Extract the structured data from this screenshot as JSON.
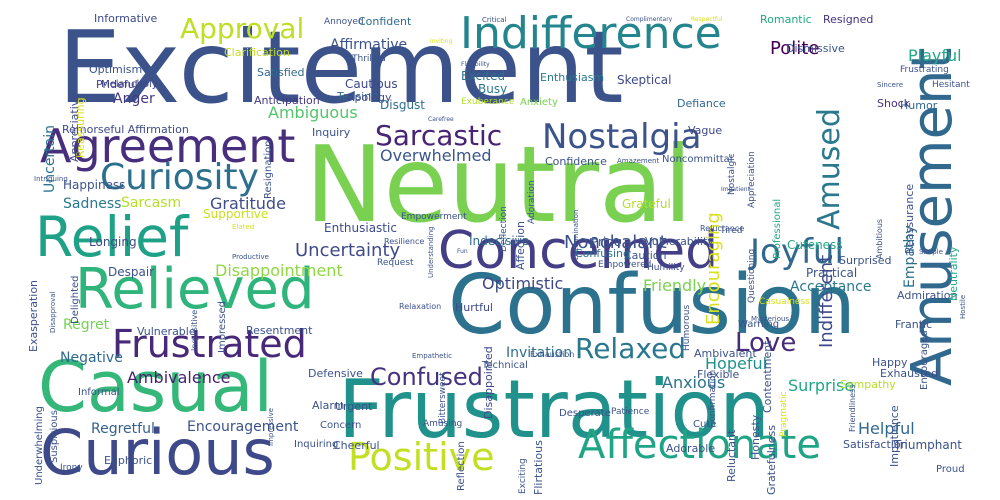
{
  "words": [
    {
      "text": "Excitement",
      "color": "#3b528b"
    },
    {
      "text": "Neutral",
      "color": "#7ad151"
    },
    {
      "text": "Confusion",
      "color": "#2c728e"
    },
    {
      "text": "Frustration",
      "color": "#21918c"
    },
    {
      "text": "Amusement",
      "color": "#31688e"
    },
    {
      "text": "Casual",
      "color": "#35b779"
    },
    {
      "text": "Curious",
      "color": "#3e4989"
    },
    {
      "text": "Relieved",
      "color": "#2fb47c"
    },
    {
      "text": "Relief",
      "color": "#1fa187"
    },
    {
      "text": "Concerned",
      "color": "#433e85"
    },
    {
      "text": "Affectionate",
      "color": "#20a486"
    },
    {
      "text": "Agreement",
      "color": "#472f7d"
    },
    {
      "text": "Indifference",
      "color": "#25858e"
    },
    {
      "text": "Frustrated",
      "color": "#482878"
    },
    {
      "text": "Positive",
      "color": "#c2df23"
    },
    {
      "text": "Curiosity",
      "color": "#2d708e"
    },
    {
      "text": "Nostalgia",
      "color": "#3b528b"
    },
    {
      "text": "Joyful",
      "color": "#31688e"
    },
    {
      "text": "Sarcastic",
      "color": "#482475"
    },
    {
      "text": "Amused",
      "color": "#2a788e"
    },
    {
      "text": "Relaxed",
      "color": "#2a788e"
    },
    {
      "text": "Approval",
      "color": "#bddf26"
    },
    {
      "text": "Confused",
      "color": "#46327e"
    },
    {
      "text": "Love",
      "color": "#472c7a"
    },
    {
      "text": "Indifferent",
      "color": "#3e4989"
    },
    {
      "text": "Encouraging",
      "color": "#d8e219"
    },
    {
      "text": "Uncertainty",
      "color": "#3e4a89"
    },
    {
      "text": "Disappointment",
      "color": "#8fd744"
    },
    {
      "text": "Ambivalence",
      "color": "#481f70"
    },
    {
      "text": "Polite",
      "color": "#440154"
    },
    {
      "text": "Playful",
      "color": "#22a884"
    },
    {
      "text": "Ambiguous",
      "color": "#52c569"
    },
    {
      "text": "Overwhelmed",
      "color": "#39568c"
    },
    {
      "text": "Optimistic",
      "color": "#3f4788"
    },
    {
      "text": "Nonchalant",
      "color": "#3b528b"
    },
    {
      "text": "Gratitude",
      "color": "#3e4c8a"
    },
    {
      "text": "Acceptance",
      "color": "#2a788e"
    },
    {
      "text": "Encouragement",
      "color": "#3b528b"
    },
    {
      "text": "Hopeful",
      "color": "#21918c"
    },
    {
      "text": "Anxious",
      "color": "#2c738e"
    },
    {
      "text": "Helpful",
      "color": "#31688e"
    },
    {
      "text": "Surprise",
      "color": "#21a685"
    },
    {
      "text": "Friendly",
      "color": "#7ad151"
    },
    {
      "text": "Regretful",
      "color": "#355f8d"
    },
    {
      "text": "Invitation",
      "color": "#2d708e"
    },
    {
      "text": "Anger",
      "color": "#453781"
    },
    {
      "text": "Affirmative",
      "color": "#3b528b"
    },
    {
      "text": "Sadness",
      "color": "#2a788e"
    },
    {
      "text": "Sarcasm",
      "color": "#b5de2b"
    },
    {
      "text": "Regret",
      "color": "#75d054"
    },
    {
      "text": "Empathy",
      "color": "#2d708e"
    },
    {
      "text": "Uncertain",
      "color": "#2c738e"
    },
    {
      "text": "Longing",
      "color": "#3e4a89"
    },
    {
      "text": "Happiness",
      "color": "#3b528b"
    },
    {
      "text": "Negative",
      "color": "#31688e"
    },
    {
      "text": "Triumphant",
      "color": "#3b528b"
    },
    {
      "text": "Informative",
      "color": "#3e4a89"
    },
    {
      "text": "Confident",
      "color": "#2e6e8e"
    },
    {
      "text": "Romantic",
      "color": "#22a884"
    },
    {
      "text": "Resigned",
      "color": "#46307e"
    },
    {
      "text": "Optimism",
      "color": "#3b528b"
    },
    {
      "text": "Prideful",
      "color": "#424186"
    },
    {
      "text": "Melancholy",
      "color": "#3f4788"
    },
    {
      "text": "Satisfied",
      "color": "#306a8e"
    },
    {
      "text": "Teasing",
      "color": "#31688e"
    },
    {
      "text": "Cautious",
      "color": "#3e4989"
    },
    {
      "text": "Busy",
      "color": "#2a788e"
    },
    {
      "text": "Excited",
      "color": "#2c728e"
    },
    {
      "text": "Apology",
      "color": "#3e4989"
    },
    {
      "text": "Disgust",
      "color": "#2e6e8e"
    },
    {
      "text": "Anticipation",
      "color": "#453882"
    },
    {
      "text": "Enthusiasm",
      "color": "#2a788e"
    },
    {
      "text": "Skeptical",
      "color": "#3e4989"
    },
    {
      "text": "Defiance",
      "color": "#31688e"
    },
    {
      "text": "Humor",
      "color": "#31688e"
    },
    {
      "text": "Shock",
      "color": "#46327e"
    },
    {
      "text": "Vague",
      "color": "#3e4989"
    },
    {
      "text": "Inquiry",
      "color": "#3b528b"
    },
    {
      "text": "Remorseful Affirmation",
      "color": "#3e4989"
    },
    {
      "text": "Confidence",
      "color": "#3b528b"
    },
    {
      "text": "Noncommittal",
      "color": "#3b528b"
    },
    {
      "text": "Pride",
      "color": "#3b528b"
    },
    {
      "text": "Confusing",
      "color": "#2c728e"
    },
    {
      "text": "Caution",
      "color": "#3b528b"
    },
    {
      "text": "Humility",
      "color": "#3e4989"
    },
    {
      "text": "Empowered",
      "color": "#3b528b"
    },
    {
      "text": "Empowerment",
      "color": "#3b528b"
    },
    {
      "text": "Vulnerability",
      "color": "#3b528b"
    },
    {
      "text": "Cuteness",
      "color": "#22a884"
    },
    {
      "text": "Practical",
      "color": "#3b528b"
    },
    {
      "text": "Admiration",
      "color": "#3b528b"
    },
    {
      "text": "Frantic",
      "color": "#3b528b"
    },
    {
      "text": "Supportive",
      "color": "#c8e020"
    },
    {
      "text": "Enthusiastic",
      "color": "#3e4989"
    },
    {
      "text": "Indecisive",
      "color": "#2e6e8e"
    },
    {
      "text": "Despair",
      "color": "#3b528b"
    },
    {
      "text": "Resentment",
      "color": "#3b528b"
    },
    {
      "text": "Vulnerable",
      "color": "#3b528b"
    },
    {
      "text": "Hurtful",
      "color": "#3e4989"
    },
    {
      "text": "Ambivalent",
      "color": "#3b528b"
    },
    {
      "text": "Flexible",
      "color": "#3b528b"
    },
    {
      "text": "Happy",
      "color": "#3b528b"
    },
    {
      "text": "Exhausted",
      "color": "#3b528b"
    },
    {
      "text": "Sympathy",
      "color": "#b5de2b"
    },
    {
      "text": "Technical",
      "color": "#3b528b"
    },
    {
      "text": "Defensive",
      "color": "#3b528b"
    },
    {
      "text": "Alarm",
      "color": "#3b528b"
    },
    {
      "text": "Urgent",
      "color": "#3b528b"
    },
    {
      "text": "Informal",
      "color": "#3b528b"
    },
    {
      "text": "Concern",
      "color": "#3b528b"
    },
    {
      "text": "Cheerful",
      "color": "#3b528b"
    },
    {
      "text": "Euphoric",
      "color": "#3b528b"
    },
    {
      "text": "Inquiring",
      "color": "#3b528b"
    },
    {
      "text": "Amusing",
      "color": "#3b528b"
    },
    {
      "text": "Cute",
      "color": "#3b528b"
    },
    {
      "text": "Adorable",
      "color": "#3b528b"
    },
    {
      "text": "Satisfaction",
      "color": "#3b528b"
    },
    {
      "text": "Proud",
      "color": "#3b528b"
    },
    {
      "text": "Desperate",
      "color": "#3b528b"
    },
    {
      "text": "Patience",
      "color": "#3b528b"
    },
    {
      "text": "Honesty",
      "color": "#3b528b"
    },
    {
      "text": "Reluctant",
      "color": "#3b528b"
    },
    {
      "text": "Impatience",
      "color": "#3b528b"
    },
    {
      "text": "Exasperation",
      "color": "#3b528b"
    },
    {
      "text": "Reassuring",
      "color": "#d8e219"
    },
    {
      "text": "Appreciative",
      "color": "#3e4989"
    },
    {
      "text": "Clarification",
      "color": "#c2df23"
    },
    {
      "text": "Annoyed",
      "color": "#3b528b"
    },
    {
      "text": "Critical",
      "color": "#3b528b"
    },
    {
      "text": "Complimentary",
      "color": "#3b528b"
    },
    {
      "text": "Respectful",
      "color": "#d8e219"
    },
    {
      "text": "Thrilled",
      "color": "#3b528b"
    },
    {
      "text": "Inviting",
      "color": "#d8e219"
    },
    {
      "text": "Flexibility",
      "color": "#3b528b"
    },
    {
      "text": "Exuberance",
      "color": "#b5de2b"
    },
    {
      "text": "Anxiety",
      "color": "#7ad151"
    },
    {
      "text": "Dismissive",
      "color": "#3b528b"
    },
    {
      "text": "Sincere",
      "color": "#3b528b"
    },
    {
      "text": "Hesitant",
      "color": "#3b528b"
    },
    {
      "text": "Reassurance",
      "color": "#3b528b"
    },
    {
      "text": "Neutrality",
      "color": "#22a884"
    },
    {
      "text": "Disappointed",
      "color": "#3e4989"
    },
    {
      "text": "Resignation",
      "color": "#3b528b"
    },
    {
      "text": "Surprised",
      "color": "#3b528b"
    },
    {
      "text": "Request",
      "color": "#3b528b"
    },
    {
      "text": "Resilience",
      "color": "#3b528b"
    },
    {
      "text": "Relaxation",
      "color": "#3b528b"
    },
    {
      "text": "Warning",
      "color": "#3b528b"
    },
    {
      "text": "Contentment",
      "color": "#3b528b"
    },
    {
      "text": "Impressed",
      "color": "#3b528b"
    },
    {
      "text": "Inquisitive",
      "color": "#3b528b"
    },
    {
      "text": "Delighted",
      "color": "#3b528b"
    },
    {
      "text": "Productive",
      "color": "#3b528b"
    },
    {
      "text": "Elated",
      "color": "#d8e219"
    },
    {
      "text": "Suspicious",
      "color": "#3b528b"
    },
    {
      "text": "Underwhelming",
      "color": "#3b528b"
    },
    {
      "text": "Irony",
      "color": "#3b528b"
    },
    {
      "text": "Carefree",
      "color": "#3b528b"
    },
    {
      "text": "Tired",
      "color": "#3b528b"
    },
    {
      "text": "Impatient",
      "color": "#3b528b"
    },
    {
      "text": "Simple",
      "color": "#3b528b"
    },
    {
      "text": "Casualness",
      "color": "#d8e219"
    },
    {
      "text": "Mysterious",
      "color": "#3b528b"
    },
    {
      "text": "Gratefulness",
      "color": "#3b528b"
    },
    {
      "text": "Pragmatic",
      "color": "#d8e219"
    },
    {
      "text": "Frustrating",
      "color": "#3b528b"
    },
    {
      "text": "Professional",
      "color": "#22a884"
    },
    {
      "text": "Questioning",
      "color": "#3b528b"
    },
    {
      "text": "Appreciation",
      "color": "#3b528b"
    },
    {
      "text": "Nostalgic",
      "color": "#3b528b"
    },
    {
      "text": "Grateful",
      "color": "#b5de2b"
    },
    {
      "text": "Encouraged",
      "color": "#3b528b"
    },
    {
      "text": "Empathetic",
      "color": "#3b528b"
    },
    {
      "text": "Bittersweet",
      "color": "#3b528b"
    },
    {
      "text": "Fun",
      "color": "#3b528b"
    },
    {
      "text": "Adoration",
      "color": "#3b528b"
    },
    {
      "text": "Determination",
      "color": "#3b528b"
    },
    {
      "text": "Amazement",
      "color": "#3b528b"
    },
    {
      "text": "Deflection",
      "color": "#3b528b"
    },
    {
      "text": "Understanding",
      "color": "#3b528b"
    },
    {
      "text": "Intriguing",
      "color": "#3b528b"
    },
    {
      "text": "Affection",
      "color": "#3b528b"
    },
    {
      "text": "Reflection",
      "color": "#3b528b"
    },
    {
      "text": "Flirtatious",
      "color": "#3b528b"
    },
    {
      "text": "Exciting",
      "color": "#3b528b"
    },
    {
      "text": "Humorous",
      "color": "#3b528b"
    },
    {
      "text": "Confirmation",
      "color": "#3b528b"
    },
    {
      "text": "Friendliness",
      "color": "#3b528b"
    },
    {
      "text": "Reluctance",
      "color": "#3b528b"
    },
    {
      "text": "Exhaustion",
      "color": "#3b528b"
    },
    {
      "text": "Ambitious",
      "color": "#3b528b"
    },
    {
      "text": "Disapproval",
      "color": "#3b528b"
    },
    {
      "text": "Impressive",
      "color": "#3b528b"
    },
    {
      "text": "Hostile",
      "color": "#3b528b"
    }
  ]
}
